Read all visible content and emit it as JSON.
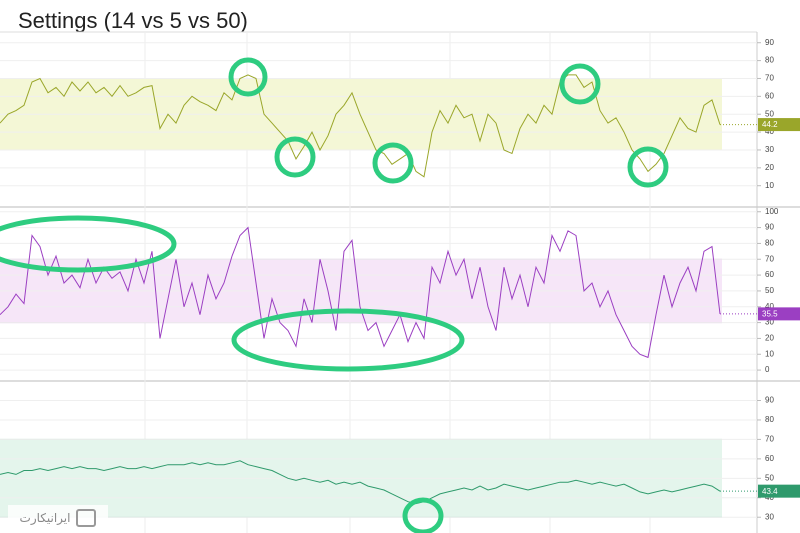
{
  "title": "Settings (14 vs 5 vs 50)",
  "watermark": "ایرانیکارت",
  "chart_data": [
    {
      "type": "line",
      "color": "#9aa62a",
      "band": [
        30,
        70
      ],
      "band_color": "#f4f7d6",
      "grid": true,
      "ylim": [
        2,
        96
      ],
      "yticks": [
        10,
        20,
        30,
        40,
        50,
        60,
        70,
        80,
        90
      ],
      "values": [
        45,
        50,
        52,
        55,
        68,
        70,
        62,
        65,
        60,
        68,
        63,
        68,
        62,
        65,
        60,
        66,
        60,
        62,
        65,
        66,
        42,
        50,
        45,
        55,
        60,
        57,
        55,
        52,
        62,
        58,
        70,
        72,
        70,
        50,
        45,
        40,
        35,
        25,
        32,
        40,
        30,
        38,
        50,
        55,
        62,
        50,
        40,
        30,
        28,
        22,
        25,
        28,
        18,
        15,
        40,
        52,
        45,
        55,
        48,
        50,
        35,
        50,
        45,
        30,
        28,
        42,
        50,
        45,
        55,
        50,
        68,
        72,
        72,
        65,
        68,
        52,
        45,
        48,
        40,
        30,
        25,
        18,
        22,
        28,
        38,
        48,
        42,
        40,
        55,
        58,
        44.2
      ]
    },
    {
      "type": "line",
      "color": "#9b3fc2",
      "band": [
        30,
        70
      ],
      "band_color": "#f6e6f8",
      "grid": true,
      "ylim": [
        -5,
        103
      ],
      "yticks": [
        0,
        10,
        20,
        30,
        40,
        50,
        60,
        70,
        80,
        90,
        100
      ],
      "values": [
        35,
        40,
        48,
        42,
        85,
        78,
        60,
        72,
        55,
        60,
        52,
        70,
        55,
        65,
        58,
        62,
        50,
        70,
        55,
        75,
        20,
        45,
        70,
        40,
        55,
        35,
        60,
        45,
        55,
        72,
        85,
        90,
        55,
        20,
        45,
        30,
        25,
        15,
        45,
        30,
        70,
        50,
        25,
        75,
        82,
        40,
        25,
        30,
        15,
        25,
        35,
        18,
        30,
        20,
        65,
        55,
        75,
        60,
        70,
        45,
        65,
        40,
        25,
        65,
        45,
        60,
        40,
        65,
        55,
        85,
        75,
        88,
        85,
        50,
        55,
        40,
        50,
        35,
        25,
        15,
        10,
        8,
        35,
        60,
        40,
        55,
        65,
        50,
        75,
        78,
        35.5
      ]
    },
    {
      "type": "line",
      "color": "#2f9a6c",
      "band": [
        30,
        70
      ],
      "band_color": "#e4f5ec",
      "grid": true,
      "ylim": [
        26,
        99
      ],
      "yticks": [
        30,
        40,
        50,
        60,
        70,
        80,
        90
      ],
      "values": [
        52,
        53,
        52,
        54,
        54,
        55,
        54,
        55,
        56,
        55,
        56,
        55,
        55,
        54,
        55,
        56,
        55,
        55,
        56,
        55,
        56,
        57,
        57,
        57,
        58,
        57,
        58,
        57,
        57,
        58,
        59,
        57,
        56,
        55,
        54,
        52,
        50,
        49,
        50,
        49,
        48,
        49,
        47,
        48,
        47,
        48,
        46,
        45,
        44,
        42,
        40,
        38,
        37,
        38,
        40,
        42,
        43,
        44,
        45,
        44,
        46,
        44,
        45,
        47,
        46,
        45,
        44,
        45,
        46,
        47,
        48,
        48,
        49,
        48,
        47,
        48,
        47,
        46,
        47,
        45,
        43,
        42,
        43,
        44,
        43,
        44,
        45,
        46,
        47,
        46,
        43.4
      ]
    }
  ]
}
